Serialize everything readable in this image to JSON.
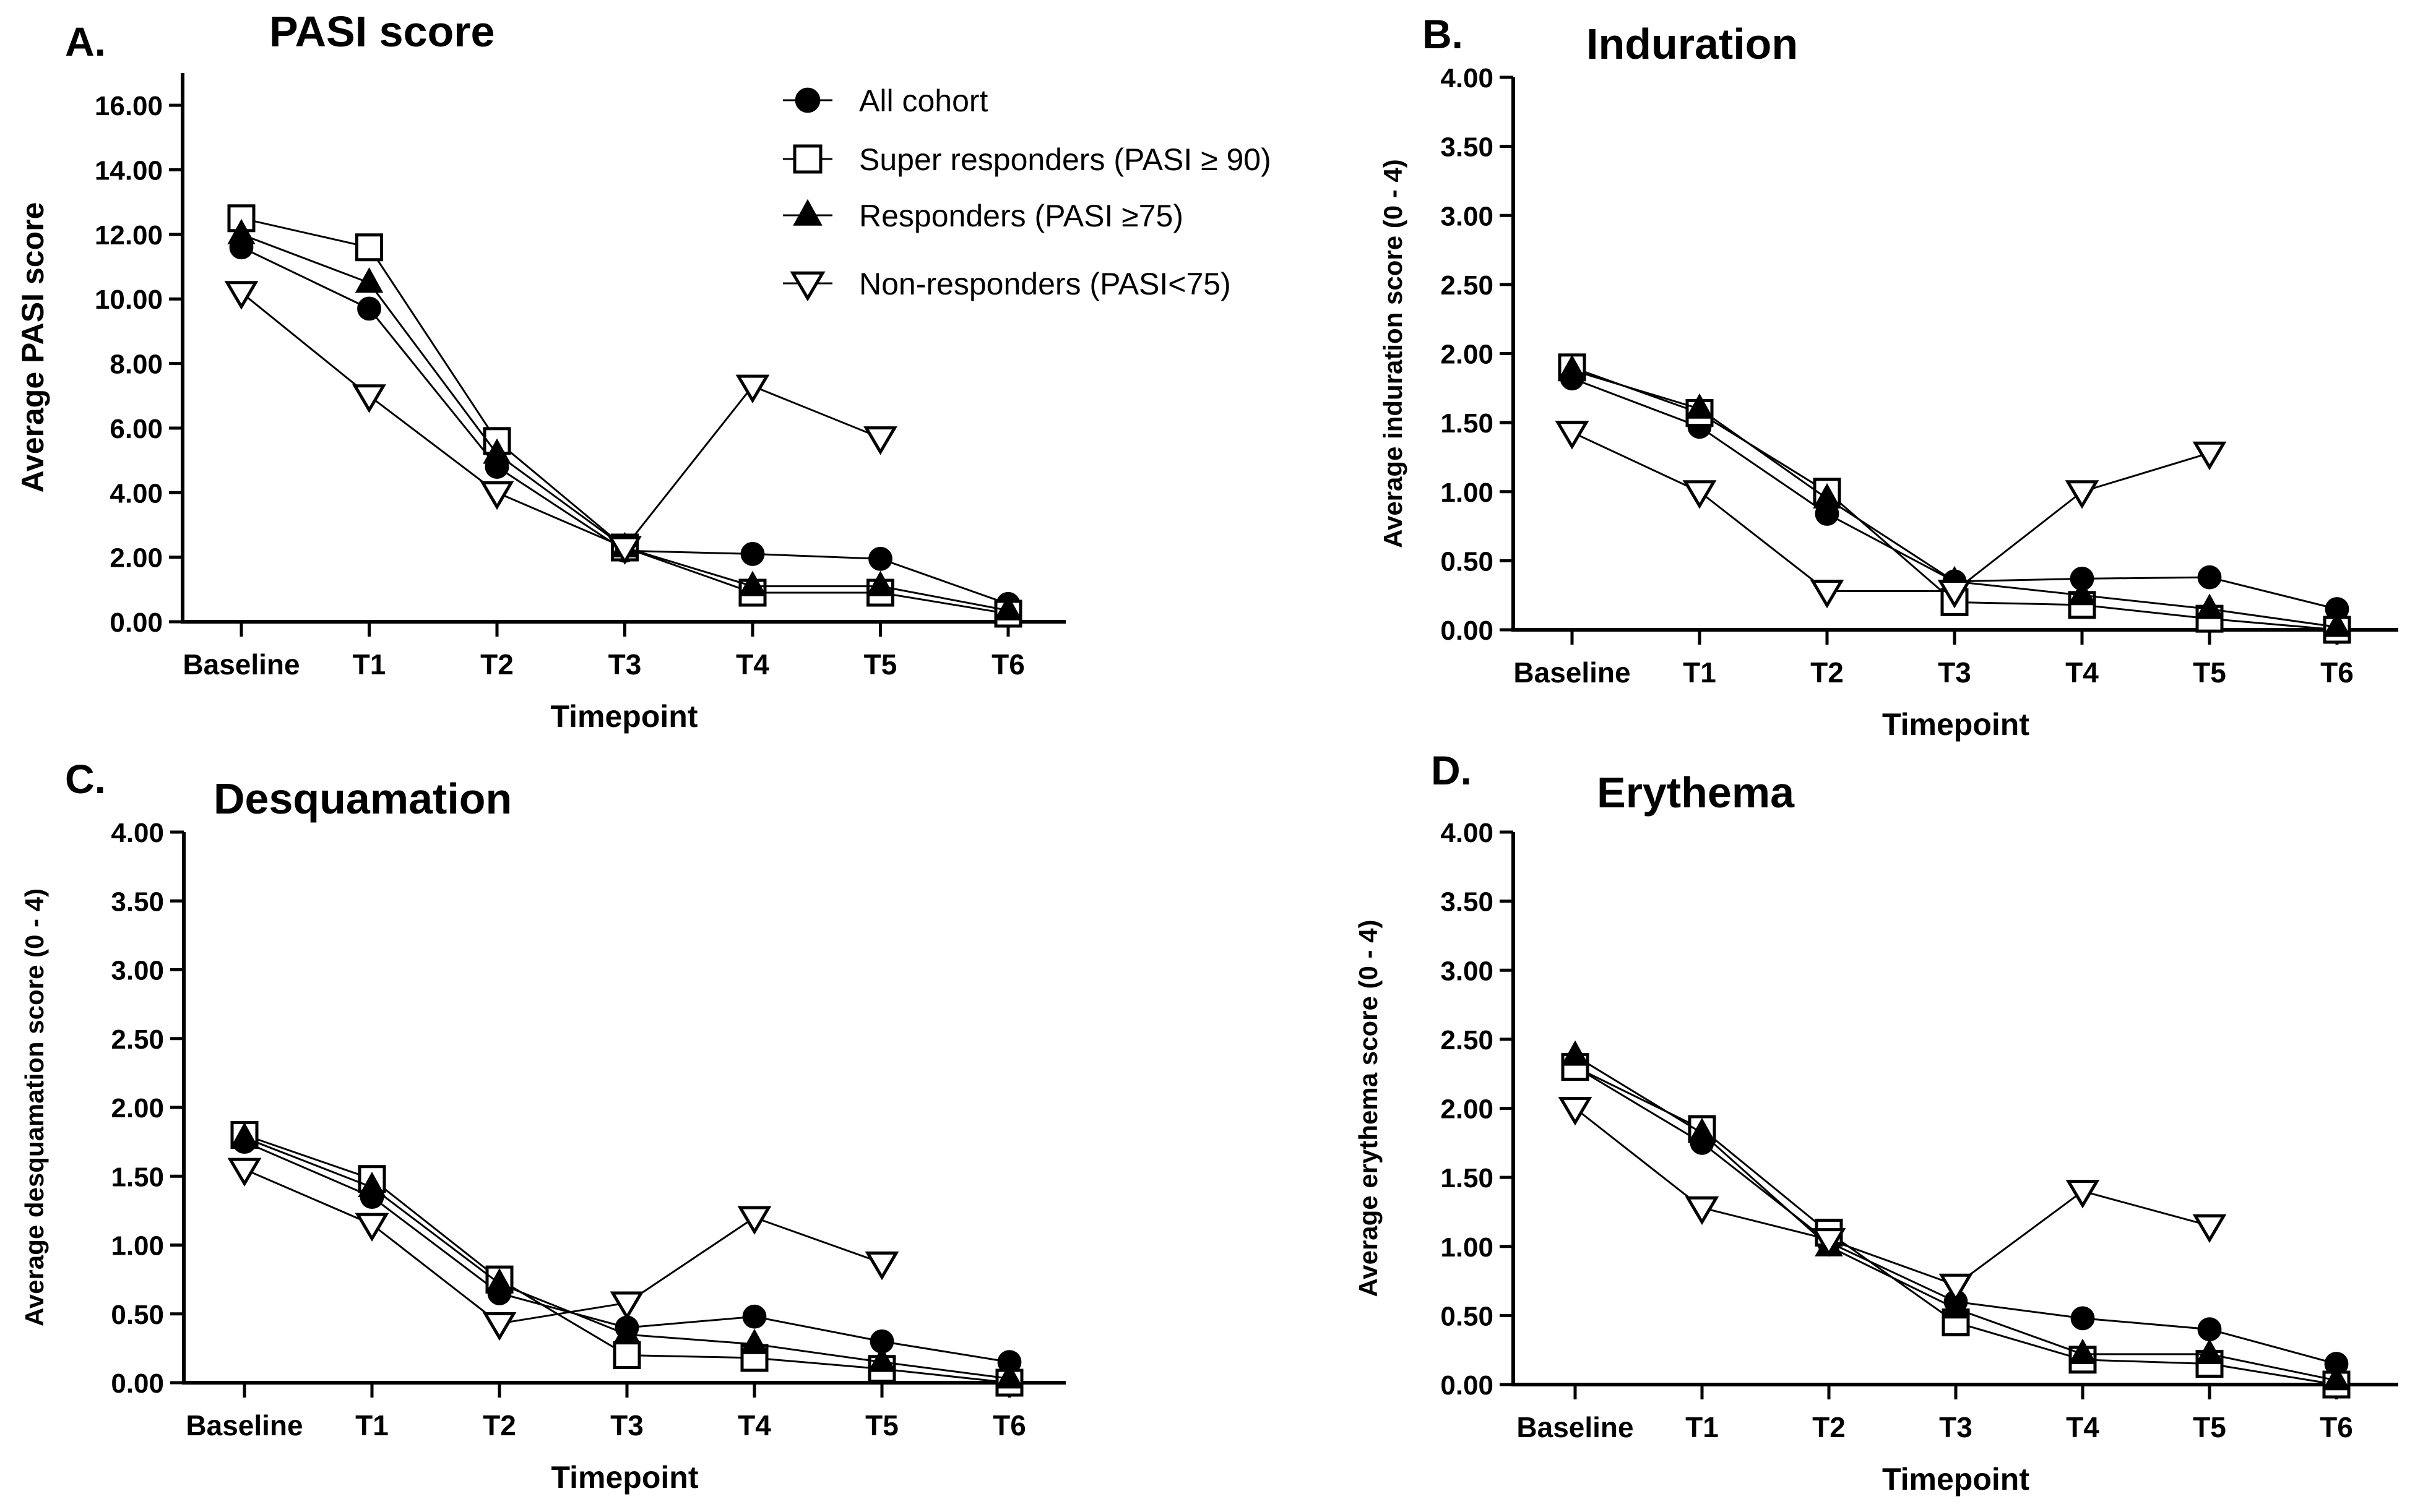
{
  "chart_data": [
    {
      "type": "line",
      "panel_label": "A.",
      "title": "PASI score",
      "xlabel": "Timepoint",
      "ylabel": "Average PASI score",
      "categories": [
        "Baseline",
        "T1",
        "T2",
        "T3",
        "T4",
        "T5",
        "T6"
      ],
      "ylim": [
        0,
        17
      ],
      "yticks": [
        "0.00",
        "2.00",
        "4.00",
        "6.00",
        "8.00",
        "10.00",
        "12.00",
        "14.00",
        "16.00"
      ],
      "series": [
        {
          "name": "All cohort",
          "marker": "circle",
          "values": [
            11.6,
            9.7,
            4.8,
            2.2,
            2.1,
            1.95,
            0.55
          ]
        },
        {
          "name": "Super responders (PASI ≥ 90)",
          "marker": "square",
          "values": [
            12.5,
            11.6,
            5.6,
            2.3,
            0.9,
            0.9,
            0.25
          ]
        },
        {
          "name": "Responders (PASI ≥75)",
          "marker": "triangle-up",
          "values": [
            12.0,
            10.5,
            5.2,
            2.3,
            1.1,
            1.1,
            0.35
          ]
        },
        {
          "name": "Non-responders (PASI<75)",
          "marker": "triangle-down",
          "values": [
            10.2,
            7.0,
            4.0,
            2.3,
            7.3,
            5.7,
            null
          ]
        }
      ]
    },
    {
      "type": "line",
      "panel_label": "B.",
      "title": "Induration",
      "xlabel": "Timepoint",
      "ylabel": "Average induration score (0 - 4)",
      "categories": [
        "Baseline",
        "T1",
        "T2",
        "T3",
        "T4",
        "T5",
        "T6"
      ],
      "ylim": [
        0,
        4
      ],
      "yticks": [
        "0.00",
        "0.50",
        "1.00",
        "1.50",
        "2.00",
        "2.50",
        "3.00",
        "3.50",
        "4.00"
      ],
      "series": [
        {
          "name": "All cohort",
          "marker": "circle",
          "values": [
            1.82,
            1.47,
            0.84,
            0.35,
            0.37,
            0.38,
            0.15
          ]
        },
        {
          "name": "Super responders (PASI ≥ 90)",
          "marker": "square",
          "values": [
            1.9,
            1.57,
            1.0,
            0.2,
            0.18,
            0.08,
            0.0
          ]
        },
        {
          "name": "Responders (PASI ≥75)",
          "marker": "triangle-up",
          "values": [
            1.88,
            1.6,
            0.95,
            0.35,
            0.25,
            0.15,
            0.02
          ]
        },
        {
          "name": "Non-responders (PASI<75)",
          "marker": "triangle-down",
          "values": [
            1.43,
            1.0,
            0.28,
            0.28,
            1.0,
            1.28,
            null
          ]
        }
      ]
    },
    {
      "type": "line",
      "panel_label": "C.",
      "title": "Desquamation",
      "xlabel": "Timepoint",
      "ylabel": "Average desquamation score (0 - 4)",
      "categories": [
        "Baseline",
        "T1",
        "T2",
        "T3",
        "T4",
        "T5",
        "T6"
      ],
      "ylim": [
        0,
        4
      ],
      "yticks": [
        "0.00",
        "0.50",
        "1.00",
        "1.50",
        "2.00",
        "2.50",
        "3.00",
        "3.50",
        "4.00"
      ],
      "series": [
        {
          "name": "All cohort",
          "marker": "circle",
          "values": [
            1.75,
            1.35,
            0.65,
            0.4,
            0.48,
            0.3,
            0.15
          ]
        },
        {
          "name": "Super responders (PASI ≥ 90)",
          "marker": "square",
          "values": [
            1.8,
            1.48,
            0.75,
            0.2,
            0.18,
            0.1,
            0.0
          ]
        },
        {
          "name": "Responders (PASI ≥75)",
          "marker": "triangle-up",
          "values": [
            1.78,
            1.42,
            0.72,
            0.35,
            0.28,
            0.15,
            0.03
          ]
        },
        {
          "name": "Non-responders (PASI<75)",
          "marker": "triangle-down",
          "values": [
            1.55,
            1.15,
            0.43,
            0.58,
            1.2,
            0.87,
            null
          ]
        }
      ]
    },
    {
      "type": "line",
      "panel_label": "D.",
      "title": "Erythema",
      "xlabel": "Timepoint",
      "ylabel": "Average erythema score (0 - 4)",
      "categories": [
        "Baseline",
        "T1",
        "T2",
        "T3",
        "T4",
        "T5",
        "T6"
      ],
      "ylim": [
        0,
        4
      ],
      "yticks": [
        "0.00",
        "0.50",
        "1.00",
        "1.50",
        "2.00",
        "2.50",
        "3.00",
        "3.50",
        "4.00"
      ],
      "series": [
        {
          "name": "All cohort",
          "marker": "circle",
          "values": [
            2.3,
            1.75,
            1.03,
            0.6,
            0.48,
            0.4,
            0.15
          ]
        },
        {
          "name": "Super responders (PASI ≥ 90)",
          "marker": "square",
          "values": [
            2.3,
            1.85,
            1.1,
            0.45,
            0.18,
            0.15,
            0.0
          ]
        },
        {
          "name": "Responders (PASI ≥75)",
          "marker": "triangle-up",
          "values": [
            2.38,
            1.82,
            1.0,
            0.55,
            0.22,
            0.22,
            0.03
          ]
        },
        {
          "name": "Non-responders (PASI<75)",
          "marker": "triangle-down",
          "values": [
            2.0,
            1.28,
            1.05,
            0.72,
            1.4,
            1.15,
            null
          ]
        }
      ]
    }
  ],
  "legend": {
    "items": [
      {
        "label": "All cohort",
        "marker": "circle"
      },
      {
        "label": "Super responders (PASI ≥ 90)",
        "marker": "square"
      },
      {
        "label": "Responders (PASI ≥75)",
        "marker": "triangle-up"
      },
      {
        "label": "Non-responders (PASI<75)",
        "marker": "triangle-down"
      }
    ]
  },
  "colors": {
    "ink": "#000000",
    "background": "#ffffff"
  }
}
